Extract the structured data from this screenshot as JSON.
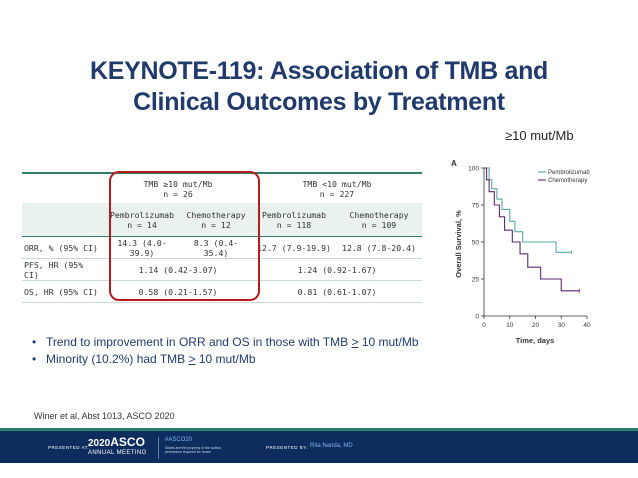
{
  "slide": {
    "title_line1": "KEYNOTE-119: Association of TMB and",
    "title_line2": "Clinical Outcomes by Treatment",
    "chart_subhead": "≥10 mut/Mb"
  },
  "table": {
    "groups": [
      {
        "label": "TMB ≥10 mut/Mb",
        "n": "n = 26"
      },
      {
        "label": "TMB <10 mut/Mb",
        "n": "n = 227"
      }
    ],
    "arms": [
      {
        "label": "Pembrolizumab",
        "n": "n = 14"
      },
      {
        "label": "Chemotherapy",
        "n": "n = 12"
      },
      {
        "label": "Pembrolizumab",
        "n": "n = 118"
      },
      {
        "label": "Chemotherapy",
        "n": "n = 109"
      }
    ],
    "rows": [
      {
        "label": "ORR, % (95% CI)",
        "cells": [
          "14.3 (4.0-39.9)",
          "8.3 (0.4-35.4)",
          "12.7 (7.9-19.9)",
          "12.8 (7.8-20.4)"
        ]
      },
      {
        "label": "PFS, HR (95% CI)",
        "high_tmb": "1.14 (0.42-3.07)",
        "low_tmb": "1.24 (0.92-1.67)"
      },
      {
        "label": "OS, HR (95% CI)",
        "high_tmb": "0.58 (0.21-1.57)",
        "low_tmb": "0.81 (0.61-1.07)"
      }
    ]
  },
  "chart_data": {
    "type": "line",
    "panel_label": "A",
    "xlabel": "Time, days",
    "ylabel": "Overall Survival, %",
    "xlim": [
      0,
      40
    ],
    "ylim": [
      0,
      100
    ],
    "xticks": [
      0,
      10,
      20,
      30,
      40
    ],
    "yticks": [
      0,
      25,
      50,
      75,
      100
    ],
    "legend": "top-right",
    "series": [
      {
        "name": "Pembrolizumab",
        "color": "#5aa8a0",
        "steps": [
          [
            0,
            100
          ],
          [
            2,
            92
          ],
          [
            3,
            86
          ],
          [
            5,
            79
          ],
          [
            7,
            72
          ],
          [
            10,
            64
          ],
          [
            12,
            57
          ],
          [
            15,
            50
          ],
          [
            28,
            43
          ],
          [
            34,
            43
          ]
        ]
      },
      {
        "name": "Chemotherapy",
        "color": "#5b2a6e",
        "steps": [
          [
            0,
            100
          ],
          [
            1,
            92
          ],
          [
            2,
            84
          ],
          [
            4,
            75
          ],
          [
            6,
            67
          ],
          [
            8,
            58
          ],
          [
            11,
            50
          ],
          [
            14,
            42
          ],
          [
            17,
            33
          ],
          [
            22,
            25
          ],
          [
            30,
            17
          ],
          [
            37,
            17
          ]
        ]
      }
    ]
  },
  "bullets": [
    {
      "pre": "Trend to improvement in ORR and OS in those with TMB ",
      "ul": ">",
      "post": " 10 mut/Mb"
    },
    {
      "pre": "Minority (10.2%) had TMB ",
      "ul": ">",
      "post": " 10 mut/Mb"
    }
  ],
  "citation": "Winer et al, Abst 1013, ASCO 2020",
  "footer": {
    "presented_at": "PRESENTED AT:",
    "year": "2020",
    "brand": "ASCO",
    "annual": "ANNUAL MEETING",
    "hashtag": "#ASCO20",
    "disclaimer_1": "Slides are the property of the author,",
    "disclaimer_2": "permission required for reuse.",
    "presented_by": "PRESENTED BY:",
    "presenter": "Rita Nanda, MD"
  }
}
